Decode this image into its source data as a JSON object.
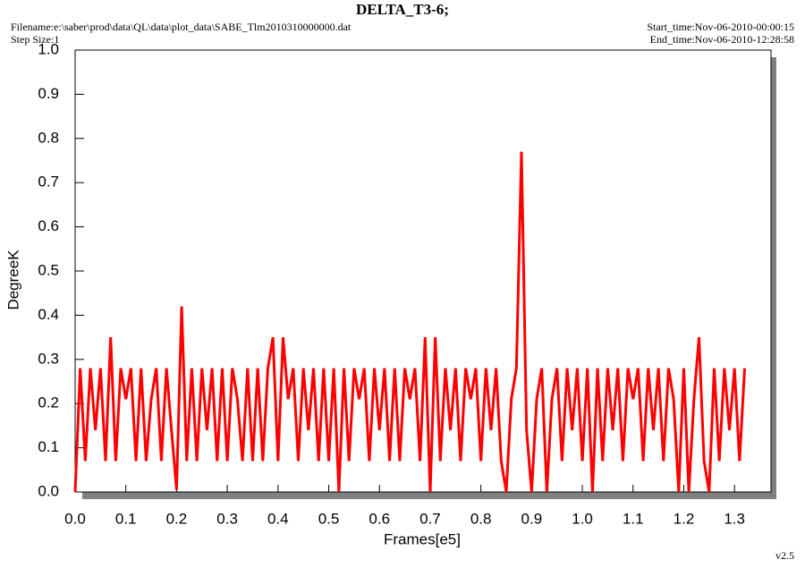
{
  "chart_data": {
    "type": "line",
    "title": "DELTA_T3-6;",
    "filename": "Filename:e:\\saber\\prod\\data\\QL\\data\\plot_data\\SABE_Tlm2010310000000.dat",
    "step_size": "Step Size:1",
    "start_time": "Start_time:Nov-06-2010-00:00:15",
    "end_time": "End_time:Nov-06-2010-12:28:58",
    "version": "v2.5",
    "x_label": "Frames[e5]",
    "y_label": "DegreeK",
    "x": [
      0,
      0.01,
      0.02,
      0.03,
      0.04,
      0.05,
      0.06,
      0.07,
      0.08,
      0.09,
      0.1,
      0.11,
      0.12,
      0.13,
      0.14,
      0.15,
      0.16,
      0.17,
      0.18,
      0.19,
      0.2,
      0.21,
      0.22,
      0.23,
      0.24,
      0.25,
      0.26,
      0.27,
      0.28,
      0.29,
      0.3,
      0.31,
      0.32,
      0.33,
      0.34,
      0.35,
      0.36,
      0.37,
      0.38,
      0.39,
      0.4,
      0.41,
      0.42,
      0.43,
      0.44,
      0.45,
      0.46,
      0.47,
      0.48,
      0.49,
      0.5,
      0.51,
      0.52,
      0.53,
      0.54,
      0.55,
      0.56,
      0.57,
      0.58,
      0.59,
      0.6,
      0.61,
      0.62,
      0.63,
      0.64,
      0.65,
      0.66,
      0.67,
      0.68,
      0.69,
      0.7,
      0.71,
      0.72,
      0.73,
      0.74,
      0.75,
      0.76,
      0.77,
      0.78,
      0.79,
      0.8,
      0.81,
      0.82,
      0.83,
      0.84,
      0.85,
      0.86,
      0.87,
      0.88,
      0.89,
      0.9,
      0.91,
      0.92,
      0.93,
      0.94,
      0.95,
      0.96,
      0.97,
      0.98,
      0.99,
      1,
      1.01,
      1.02,
      1.03,
      1.04,
      1.05,
      1.06,
      1.07,
      1.08,
      1.09,
      1.1,
      1.11,
      1.12,
      1.13,
      1.14,
      1.15,
      1.16,
      1.17,
      1.18,
      1.19,
      1.2,
      1.21,
      1.22,
      1.23,
      1.24,
      1.25,
      1.26,
      1.27,
      1.28,
      1.29,
      1.3,
      1.31,
      1.32
    ],
    "series": [
      {
        "color": "#ff0000",
        "values": [
          0.0,
          0.28,
          0.07,
          0.28,
          0.14,
          0.28,
          0.07,
          0.35,
          0.07,
          0.28,
          0.21,
          0.28,
          0.07,
          0.28,
          0.07,
          0.21,
          0.28,
          0.07,
          0.28,
          0.14,
          0.005,
          0.42,
          0.07,
          0.28,
          0.07,
          0.28,
          0.14,
          0.28,
          0.07,
          0.28,
          0.07,
          0.28,
          0.21,
          0.07,
          0.28,
          0.07,
          0.28,
          0.07,
          0.28,
          0.35,
          0.07,
          0.35,
          0.21,
          0.28,
          0.07,
          0.28,
          0.14,
          0.28,
          0.07,
          0.28,
          0.07,
          0.28,
          0.0,
          0.28,
          0.07,
          0.28,
          0.21,
          0.28,
          0.07,
          0.28,
          0.14,
          0.28,
          0.07,
          0.28,
          0.07,
          0.28,
          0.21,
          0.28,
          0.07,
          0.35,
          0.0,
          0.35,
          0.07,
          0.28,
          0.14,
          0.28,
          0.07,
          0.28,
          0.21,
          0.28,
          0.07,
          0.28,
          0.14,
          0.28,
          0.07,
          0.0,
          0.21,
          0.28,
          0.77,
          0.14,
          0.0,
          0.21,
          0.28,
          0.0,
          0.21,
          0.28,
          0.07,
          0.28,
          0.14,
          0.28,
          0.07,
          0.28,
          0.0,
          0.28,
          0.07,
          0.28,
          0.14,
          0.28,
          0.07,
          0.28,
          0.21,
          0.28,
          0.07,
          0.28,
          0.14,
          0.28,
          0.07,
          0.28,
          0.21,
          0.0,
          0.28,
          0.0,
          0.21,
          0.35,
          0.07,
          0.0,
          0.28,
          0.07,
          0.28,
          0.14,
          0.28,
          0.07,
          0.28
        ]
      }
    ],
    "xlim": [
      0,
      1.372
    ],
    "ylim": [
      0,
      1.0
    ],
    "xticks": [
      {
        "value": 0,
        "label": "0.0"
      },
      0.1,
      0.2,
      0.3,
      0.4,
      0.5,
      0.6,
      0.7,
      0.8,
      0.9,
      {
        "value": 1,
        "label": "1.0"
      },
      1.1,
      1.2,
      1.3
    ],
    "yticks": [
      {
        "value": 0,
        "label": "0.0"
      },
      0.1,
      0.2,
      0.3,
      0.4,
      0.5,
      0.6,
      0.7,
      0.8,
      0.9,
      {
        "value": 1,
        "label": "1.0"
      }
    ]
  }
}
